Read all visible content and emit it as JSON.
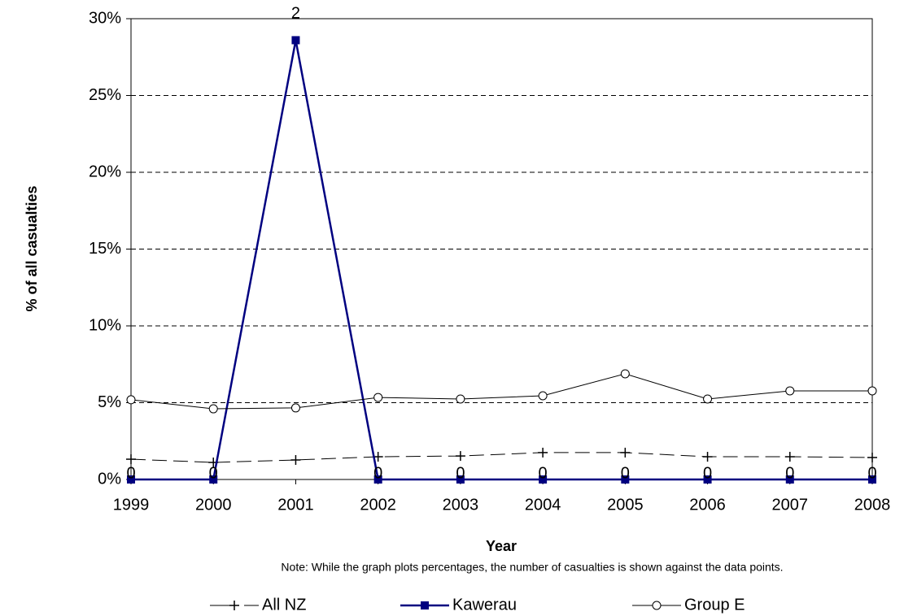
{
  "chart_data": {
    "type": "line",
    "y_label": "% of all casualties",
    "x_label": "Year",
    "note": "Note: While the graph plots percentages, the number of casualties is shown against the data points.",
    "categories": [
      "1999",
      "2000",
      "2001",
      "2002",
      "2003",
      "2004",
      "2005",
      "2006",
      "2007",
      "2008"
    ],
    "ylim": [
      0,
      30
    ],
    "yticks": [
      {
        "value": 0,
        "label": "0%"
      },
      {
        "value": 5,
        "label": "5%"
      },
      {
        "value": 10,
        "label": "10%"
      },
      {
        "value": 15,
        "label": "15%"
      },
      {
        "value": 20,
        "label": "20%"
      },
      {
        "value": 25,
        "label": "25%"
      },
      {
        "value": 30,
        "label": "30%"
      }
    ],
    "grid": true,
    "series": [
      {
        "name": "All NZ",
        "color": "#000000",
        "dashed": true,
        "marker": "plus",
        "width": 1,
        "values": [
          1.32,
          1.11,
          1.27,
          1.48,
          1.53,
          1.75,
          1.75,
          1.48,
          1.48,
          1.43
        ]
      },
      {
        "name": "Kawerau",
        "color": "#000080",
        "dashed": false,
        "marker": "square",
        "width": 2.5,
        "values": [
          0,
          0,
          28.6,
          0,
          0,
          0,
          0,
          0,
          0,
          0
        ],
        "casualties": [
          0,
          0,
          2,
          0,
          0,
          0,
          0,
          0,
          0,
          0
        ]
      },
      {
        "name": "Group E",
        "color": "#000000",
        "dashed": false,
        "marker": "circle",
        "width": 1,
        "values": [
          5.19,
          4.6,
          4.66,
          5.34,
          5.24,
          5.45,
          6.88,
          5.24,
          5.77,
          5.77
        ]
      }
    ]
  }
}
